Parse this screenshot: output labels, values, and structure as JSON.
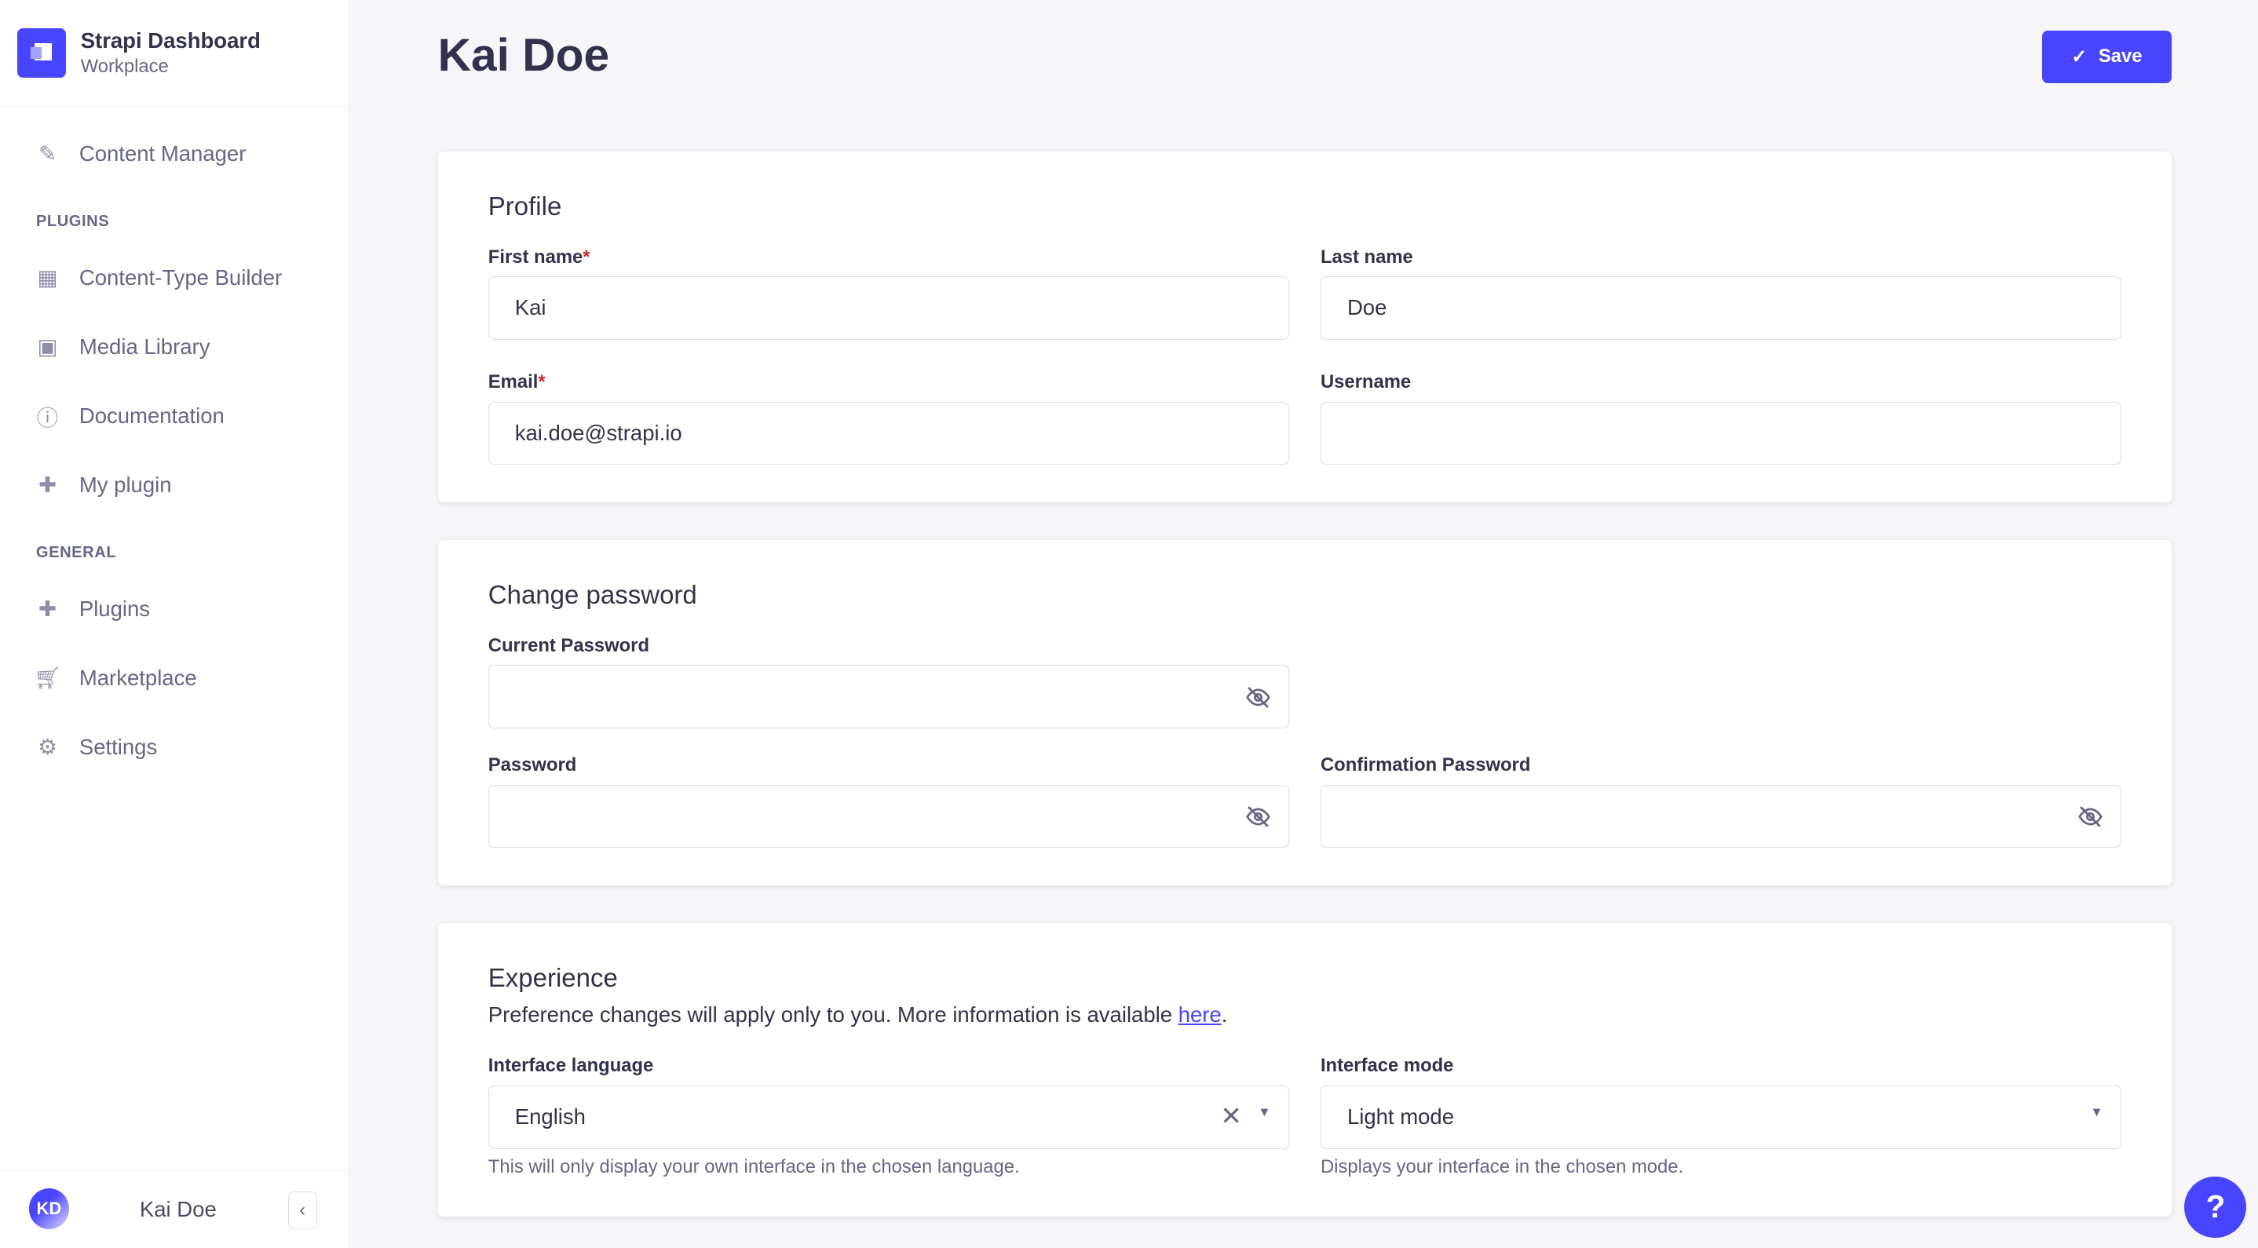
{
  "brand": {
    "title": "Strapi Dashboard",
    "subtitle": "Workplace"
  },
  "sidebar": {
    "content_manager": "Content Manager",
    "plugins_heading": "PLUGINS",
    "plugins": [
      "Content-Type Builder",
      "Media Library",
      "Documentation",
      "My plugin"
    ],
    "general_heading": "GENERAL",
    "general": [
      "Plugins",
      "Marketplace",
      "Settings"
    ],
    "user": {
      "initials": "KD",
      "name": "Kai Doe"
    }
  },
  "header": {
    "title": "Kai Doe",
    "save_label": "Save"
  },
  "profile": {
    "title": "Profile",
    "first_name_label": "First name",
    "first_name": "Kai",
    "last_name_label": "Last name",
    "last_name": "Doe",
    "email_label": "Email",
    "email": "kai.doe@strapi.io",
    "username_label": "Username",
    "username": "",
    "required_mark": "*"
  },
  "password": {
    "title": "Change password",
    "current_label": "Current Password",
    "password_label": "Password",
    "confirm_label": "Confirmation Password"
  },
  "experience": {
    "title": "Experience",
    "description": "Preference changes will apply only to you. More information is available ",
    "link": "here",
    "period": ".",
    "language_label": "Interface language",
    "language": "English",
    "language_hint": "This will only display your own interface in the chosen language.",
    "mode_label": "Interface mode",
    "mode": "Light mode",
    "mode_hint": "Displays your interface in the chosen mode."
  },
  "help": "?",
  "colors": {
    "primary": "#4945ff",
    "required": "#d02b20"
  }
}
